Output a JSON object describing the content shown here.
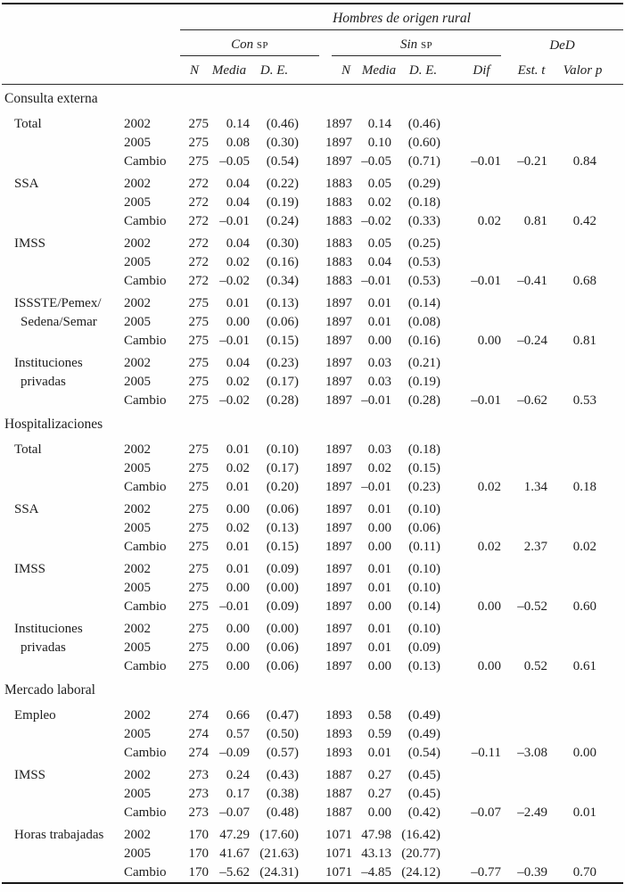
{
  "header": {
    "title": "Hombres de origen rural",
    "groups": [
      {
        "label": "Con",
        "sc": "SP"
      },
      {
        "label": "Sin",
        "sc": "SP"
      },
      {
        "label": "DeD",
        "sc": ""
      }
    ],
    "columns": [
      "N",
      "Media",
      "D. E.",
      "N",
      "Media",
      "D. E.",
      "Dif",
      "Est. t",
      "Valor p"
    ]
  },
  "sections": [
    {
      "title": "Consulta externa",
      "groups": [
        {
          "label": [
            "Total"
          ],
          "rows": [
            {
              "period": "2002",
              "values": [
                "275",
                "0.14",
                "(0.46)",
                "1897",
                "0.14",
                "(0.46)",
                "",
                "",
                ""
              ]
            },
            {
              "period": "2005",
              "values": [
                "275",
                "0.08",
                "(0.30)",
                "1897",
                "0.10",
                "(0.60)",
                "",
                "",
                ""
              ]
            },
            {
              "period": "Cambio",
              "values": [
                "275",
                "–0.05",
                "(0.54)",
                "1897",
                "–0.05",
                "(0.71)",
                "–0.01",
                "–0.21",
                "0.84"
              ]
            }
          ]
        },
        {
          "label": [
            "SSA"
          ],
          "rows": [
            {
              "period": "2002",
              "values": [
                "272",
                "0.04",
                "(0.22)",
                "1883",
                "0.05",
                "(0.29)",
                "",
                "",
                ""
              ]
            },
            {
              "period": "2005",
              "values": [
                "272",
                "0.04",
                "(0.19)",
                "1883",
                "0.02",
                "(0.18)",
                "",
                "",
                ""
              ]
            },
            {
              "period": "Cambio",
              "values": [
                "272",
                "–0.01",
                "(0.24)",
                "1883",
                "–0.02",
                "(0.33)",
                "0.02",
                "0.81",
                "0.42"
              ]
            }
          ]
        },
        {
          "label": [
            "IMSS"
          ],
          "rows": [
            {
              "period": "2002",
              "values": [
                "272",
                "0.04",
                "(0.30)",
                "1883",
                "0.05",
                "(0.25)",
                "",
                "",
                ""
              ]
            },
            {
              "period": "2005",
              "values": [
                "272",
                "0.02",
                "(0.16)",
                "1883",
                "0.04",
                "(0.53)",
                "",
                "",
                ""
              ]
            },
            {
              "period": "Cambio",
              "values": [
                "272",
                "–0.02",
                "(0.34)",
                "1883",
                "–0.01",
                "(0.53)",
                "–0.01",
                "–0.41",
                "0.68"
              ]
            }
          ]
        },
        {
          "label": [
            "ISSSTE/Pemex/",
            "Sedena/Semar"
          ],
          "rows": [
            {
              "period": "2002",
              "values": [
                "275",
                "0.01",
                "(0.13)",
                "1897",
                "0.01",
                "(0.14)",
                "",
                "",
                ""
              ]
            },
            {
              "period": "2005",
              "values": [
                "275",
                "0.00",
                "(0.06)",
                "1897",
                "0.01",
                "(0.08)",
                "",
                "",
                ""
              ]
            },
            {
              "period": "Cambio",
              "values": [
                "275",
                "–0.01",
                "(0.15)",
                "1897",
                "0.00",
                "(0.16)",
                "0.00",
                "–0.24",
                "0.81"
              ]
            }
          ]
        },
        {
          "label": [
            "Instituciones",
            "privadas"
          ],
          "rows": [
            {
              "period": "2002",
              "values": [
                "275",
                "0.04",
                "(0.23)",
                "1897",
                "0.03",
                "(0.21)",
                "",
                "",
                ""
              ]
            },
            {
              "period": "2005",
              "values": [
                "275",
                "0.02",
                "(0.17)",
                "1897",
                "0.03",
                "(0.19)",
                "",
                "",
                ""
              ]
            },
            {
              "period": "Cambio",
              "values": [
                "275",
                "–0.02",
                "(0.28)",
                "1897",
                "–0.01",
                "(0.28)",
                "–0.01",
                "–0.62",
                "0.53"
              ]
            }
          ]
        }
      ]
    },
    {
      "title": "Hospitalizaciones",
      "groups": [
        {
          "label": [
            "Total"
          ],
          "rows": [
            {
              "period": "2002",
              "values": [
                "275",
                "0.01",
                "(0.10)",
                "1897",
                "0.03",
                "(0.18)",
                "",
                "",
                ""
              ]
            },
            {
              "period": "2005",
              "values": [
                "275",
                "0.02",
                "(0.17)",
                "1897",
                "0.02",
                "(0.15)",
                "",
                "",
                ""
              ]
            },
            {
              "period": "Cambio",
              "values": [
                "275",
                "0.01",
                "(0.20)",
                "1897",
                "–0.01",
                "(0.23)",
                "0.02",
                "1.34",
                "0.18"
              ]
            }
          ]
        },
        {
          "label": [
            "SSA"
          ],
          "rows": [
            {
              "period": "2002",
              "values": [
                "275",
                "0.00",
                "(0.06)",
                "1897",
                "0.01",
                "(0.10)",
                "",
                "",
                ""
              ]
            },
            {
              "period": "2005",
              "values": [
                "275",
                "0.02",
                "(0.13)",
                "1897",
                "0.00",
                "(0.06)",
                "",
                "",
                ""
              ]
            },
            {
              "period": "Cambio",
              "values": [
                "275",
                "0.01",
                "(0.15)",
                "1897",
                "0.00",
                "(0.11)",
                "0.02",
                "2.37",
                "0.02"
              ]
            }
          ]
        },
        {
          "label": [
            "IMSS"
          ],
          "rows": [
            {
              "period": "2002",
              "values": [
                "275",
                "0.01",
                "(0.09)",
                "1897",
                "0.01",
                "(0.10)",
                "",
                "",
                ""
              ]
            },
            {
              "period": "2005",
              "values": [
                "275",
                "0.00",
                "(0.00)",
                "1897",
                "0.01",
                "(0.10)",
                "",
                "",
                ""
              ]
            },
            {
              "period": "Cambio",
              "values": [
                "275",
                "–0.01",
                "(0.09)",
                "1897",
                "0.00",
                "(0.14)",
                "0.00",
                "–0.52",
                "0.60"
              ]
            }
          ]
        },
        {
          "label": [
            "Instituciones",
            "privadas"
          ],
          "rows": [
            {
              "period": "2002",
              "values": [
                "275",
                "0.00",
                "(0.00)",
                "1897",
                "0.01",
                "(0.10)",
                "",
                "",
                ""
              ]
            },
            {
              "period": "2005",
              "values": [
                "275",
                "0.00",
                "(0.06)",
                "1897",
                "0.01",
                "(0.09)",
                "",
                "",
                ""
              ]
            },
            {
              "period": "Cambio",
              "values": [
                "275",
                "0.00",
                "(0.06)",
                "1897",
                "0.00",
                "(0.13)",
                "0.00",
                "0.52",
                "0.61"
              ]
            }
          ]
        }
      ]
    },
    {
      "title": "Mercado laboral",
      "groups": [
        {
          "label": [
            "Empleo"
          ],
          "rows": [
            {
              "period": "2002",
              "values": [
                "274",
                "0.66",
                "(0.47)",
                "1893",
                "0.58",
                "(0.49)",
                "",
                "",
                ""
              ]
            },
            {
              "period": "2005",
              "values": [
                "274",
                "0.57",
                "(0.50)",
                "1893",
                "0.59",
                "(0.49)",
                "",
                "",
                ""
              ]
            },
            {
              "period": "Cambio",
              "values": [
                "274",
                "–0.09",
                "(0.57)",
                "1893",
                "0.01",
                "(0.54)",
                "–0.11",
                "–3.08",
                "0.00"
              ]
            }
          ]
        },
        {
          "label": [
            "IMSS"
          ],
          "rows": [
            {
              "period": "2002",
              "values": [
                "273",
                "0.24",
                "(0.43)",
                "1887",
                "0.27",
                "(0.45)",
                "",
                "",
                ""
              ]
            },
            {
              "period": "2005",
              "values": [
                "273",
                "0.17",
                "(0.38)",
                "1887",
                "0.27",
                "(0.45)",
                "",
                "",
                ""
              ]
            },
            {
              "period": "Cambio",
              "values": [
                "273",
                "–0.07",
                "(0.48)",
                "1887",
                "0.00",
                "(0.42)",
                "–0.07",
                "–2.49",
                "0.01"
              ]
            }
          ]
        },
        {
          "label": [
            "Horas trabajadas"
          ],
          "rows": [
            {
              "period": "2002",
              "values": [
                "170",
                "47.29",
                "(17.60)",
                "1071",
                "47.98",
                "(16.42)",
                "",
                "",
                ""
              ]
            },
            {
              "period": "2005",
              "values": [
                "170",
                "41.67",
                "(21.63)",
                "1071",
                "43.13",
                "(20.77)",
                "",
                "",
                ""
              ]
            },
            {
              "period": "Cambio",
              "values": [
                "170",
                "–5.62",
                "(24.31)",
                "1071",
                "–4.85",
                "(24.12)",
                "–0.77",
                "–0.39",
                "0.70"
              ]
            }
          ]
        }
      ]
    }
  ]
}
